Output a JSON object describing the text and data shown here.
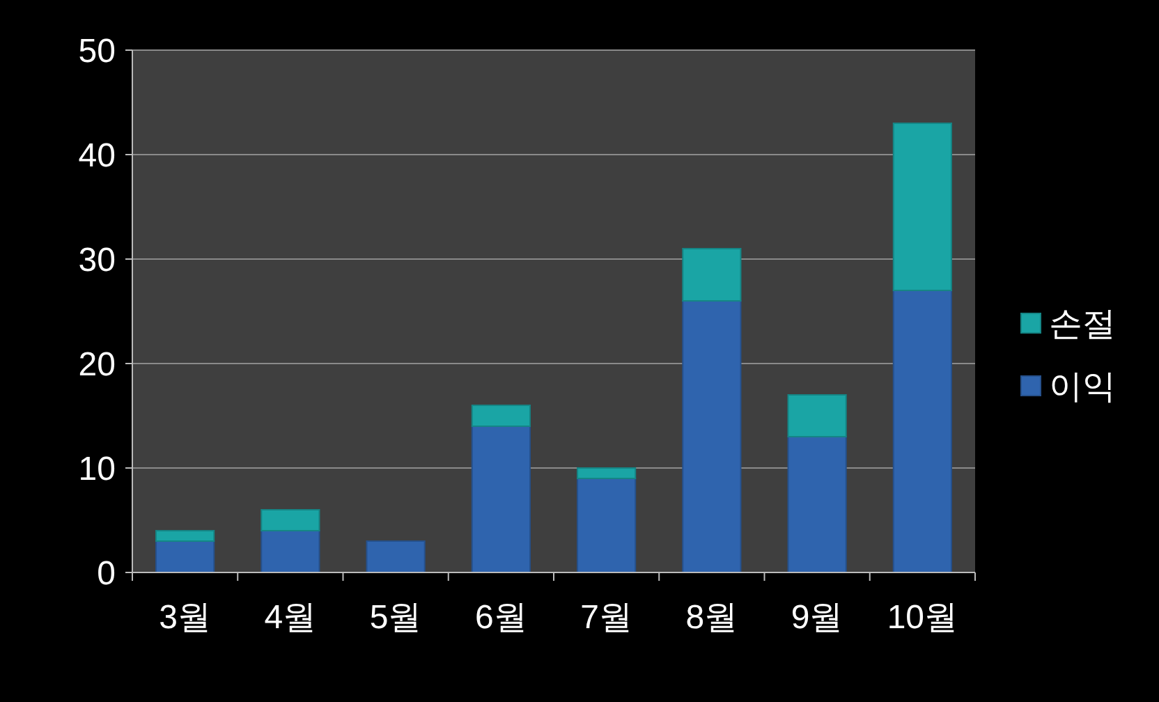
{
  "chart_data": {
    "type": "bar",
    "stacked": true,
    "categories": [
      "3월",
      "4월",
      "5월",
      "6월",
      "7월",
      "8월",
      "9월",
      "10월"
    ],
    "series": [
      {
        "name": "이익",
        "color": "#2f64ae",
        "values": [
          3,
          4,
          3,
          14,
          9,
          26,
          13,
          27
        ]
      },
      {
        "name": "손절",
        "color": "#1aa5a5",
        "values": [
          1,
          2,
          0,
          2,
          1,
          5,
          4,
          16
        ]
      }
    ],
    "ylim": [
      0,
      50
    ],
    "yticks": [
      0,
      10,
      20,
      30,
      40,
      50
    ],
    "grid": "y",
    "legend": "right"
  }
}
